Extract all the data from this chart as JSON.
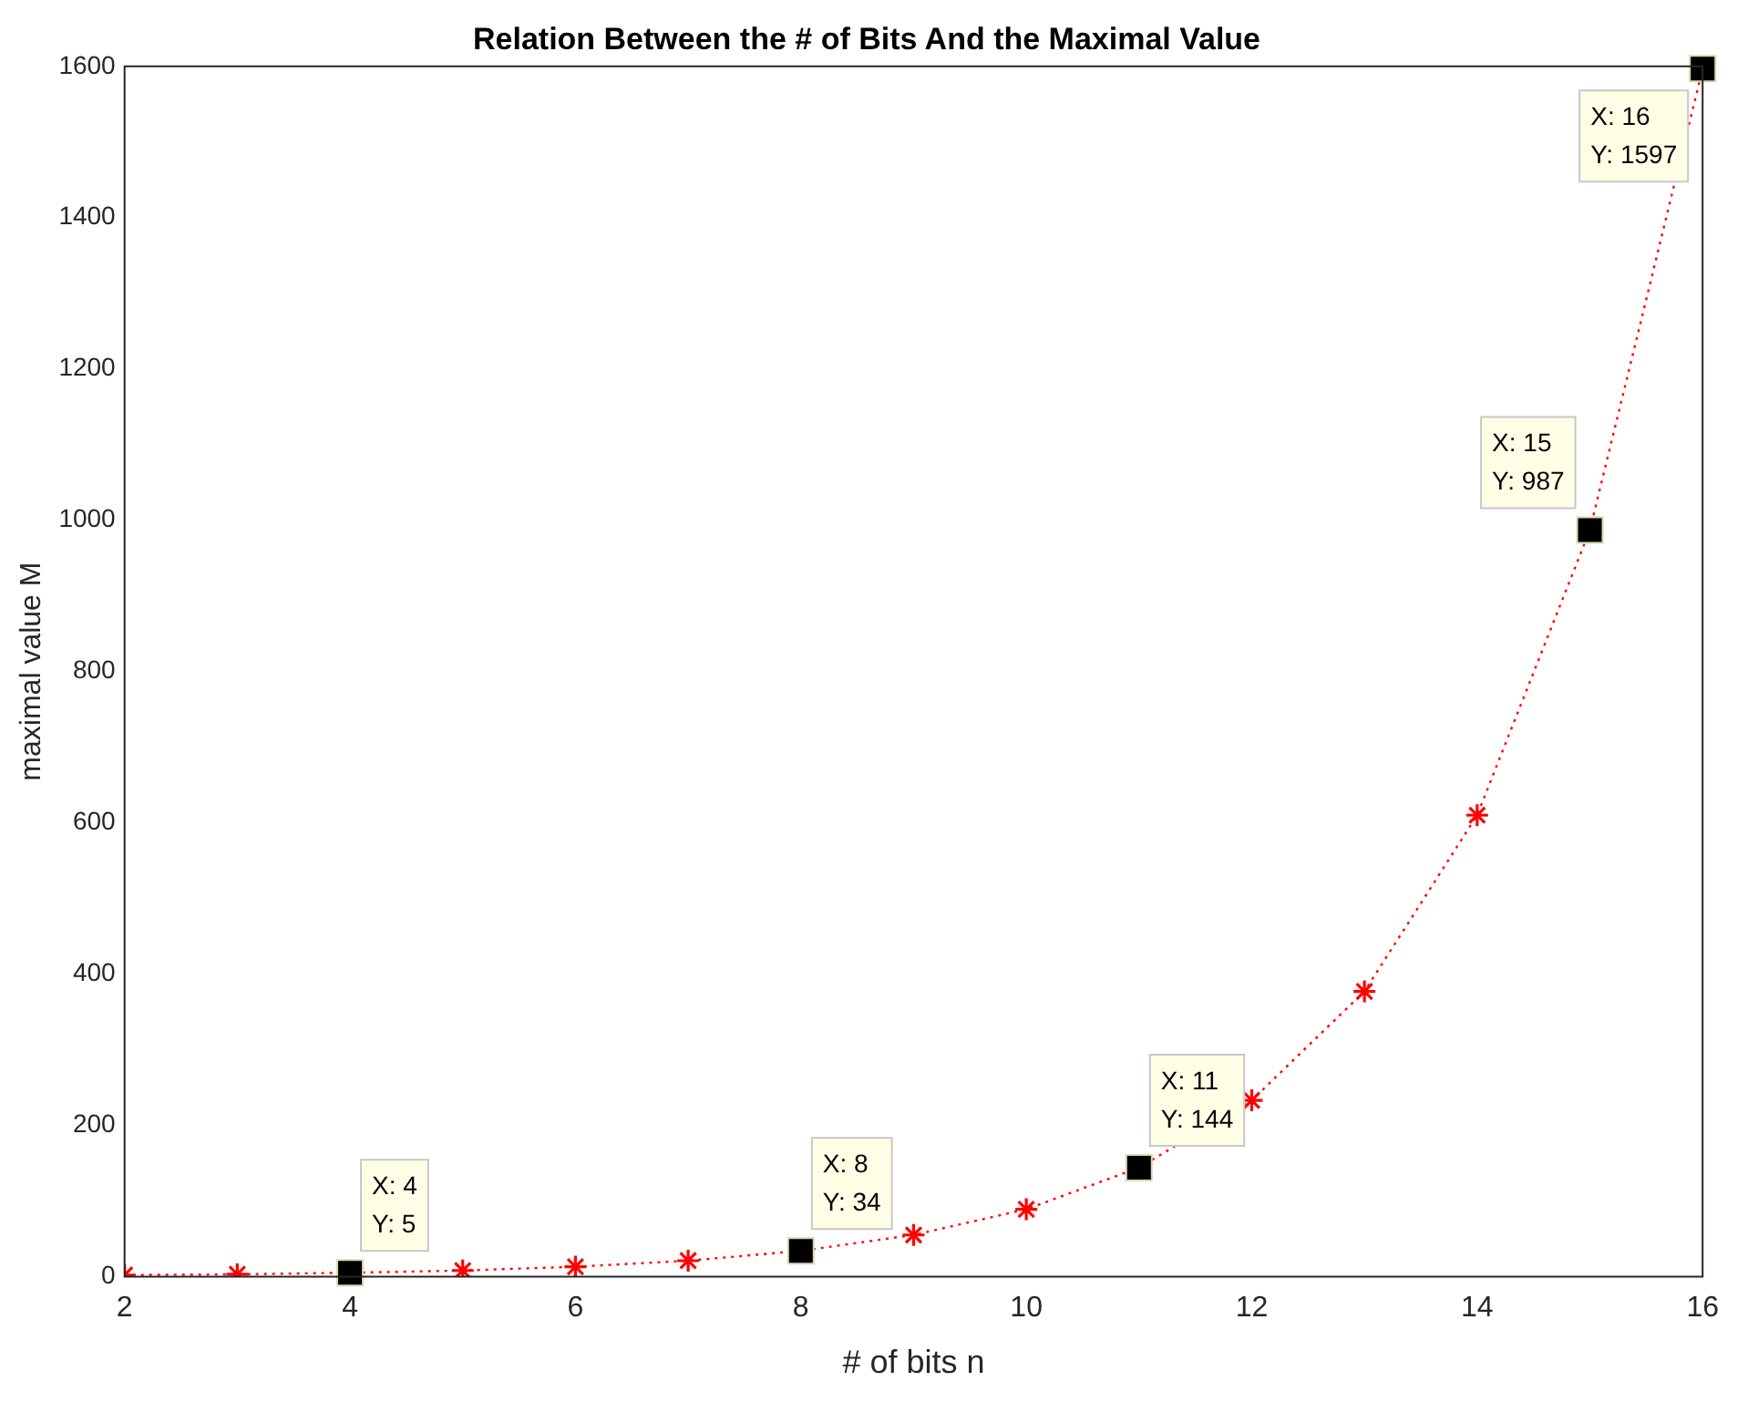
{
  "chart_data": {
    "type": "line",
    "title": "Relation Between the # of Bits And the Maximal Value",
    "xlabel": "# of bits n",
    "ylabel": "maximal value M",
    "x": [
      2,
      3,
      4,
      5,
      6,
      7,
      8,
      9,
      10,
      11,
      12,
      13,
      14,
      15,
      16
    ],
    "series": [
      {
        "color": "#ff0000",
        "values": [
          2,
          3,
          5,
          8,
          13,
          21,
          34,
          55,
          89,
          144,
          233,
          377,
          610,
          987,
          1597
        ]
      }
    ],
    "marker": "cross",
    "line_style": "dotted",
    "grid": false,
    "legend": false,
    "xlim": [
      2,
      16
    ],
    "xticks": [
      2,
      4,
      6,
      8,
      10,
      12,
      14,
      16
    ],
    "ylim": [
      0,
      1600
    ],
    "yticks": [
      0,
      200,
      400,
      600,
      800,
      1000,
      1200,
      1400,
      1600
    ],
    "annotations": [
      {
        "text": "X: 4\nY: 5",
        "x": 4,
        "y": 5
      },
      {
        "text": "X: 8\nY: 34",
        "x": 8,
        "y": 34
      },
      {
        "text": "X: 11\nY: 144",
        "x": 11,
        "y": 144
      },
      {
        "text": "X: 15\nY: 987",
        "x": 15,
        "y": 987
      },
      {
        "text": "X: 16\nY: 1597",
        "x": 16,
        "y": 1597
      }
    ]
  }
}
